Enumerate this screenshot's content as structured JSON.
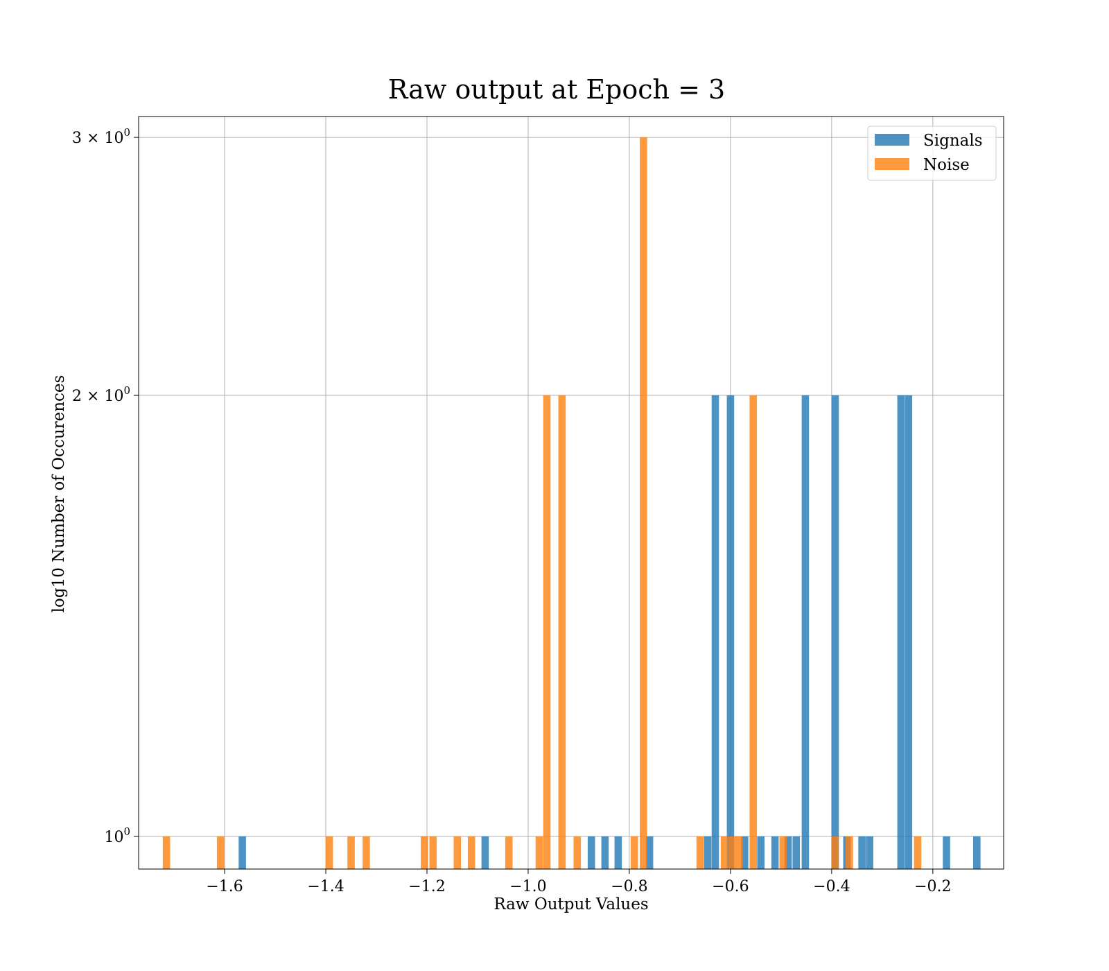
{
  "chart_data": {
    "type": "bar",
    "title": "Raw output at Epoch = 3",
    "xlabel": "Raw Output Values",
    "ylabel": "log10 Number of Occurences",
    "xlim": [
      -1.77,
      -0.06
    ],
    "ylim": [
      0.95,
      3.1
    ],
    "yscale": "log",
    "grid": true,
    "legend_position": "top-right",
    "bin_width": 0.0145,
    "x_ticks": [
      {
        "value": -1.6,
        "label": "−1.6"
      },
      {
        "value": -1.4,
        "label": "−1.4"
      },
      {
        "value": -1.2,
        "label": "−1.2"
      },
      {
        "value": -1.0,
        "label": "−1.0"
      },
      {
        "value": -0.8,
        "label": "−0.8"
      },
      {
        "value": -0.6,
        "label": "−0.6"
      },
      {
        "value": -0.4,
        "label": "−0.4"
      },
      {
        "value": -0.2,
        "label": "−0.2"
      }
    ],
    "y_ticks": [
      {
        "value": 1,
        "base": "10",
        "exp": "0"
      },
      {
        "value": 2,
        "base": "2 × 10",
        "exp": "0"
      },
      {
        "value": 3,
        "base": "3 × 10",
        "exp": "0"
      }
    ],
    "series": [
      {
        "name": "Signals",
        "color": "#1f77b4",
        "bars": [
          {
            "x": -1.565,
            "count": 1
          },
          {
            "x": -1.085,
            "count": 1
          },
          {
            "x": -0.875,
            "count": 1
          },
          {
            "x": -0.848,
            "count": 1
          },
          {
            "x": -0.822,
            "count": 1
          },
          {
            "x": -0.76,
            "count": 1
          },
          {
            "x": -0.645,
            "count": 1
          },
          {
            "x": -0.63,
            "count": 2
          },
          {
            "x": -0.6,
            "count": 2
          },
          {
            "x": -0.572,
            "count": 1
          },
          {
            "x": -0.54,
            "count": 1
          },
          {
            "x": -0.512,
            "count": 1
          },
          {
            "x": -0.486,
            "count": 1
          },
          {
            "x": -0.47,
            "count": 1
          },
          {
            "x": -0.452,
            "count": 2
          },
          {
            "x": -0.393,
            "count": 2
          },
          {
            "x": -0.37,
            "count": 1
          },
          {
            "x": -0.34,
            "count": 1
          },
          {
            "x": -0.325,
            "count": 1
          },
          {
            "x": -0.263,
            "count": 2
          },
          {
            "x": -0.248,
            "count": 2
          },
          {
            "x": -0.173,
            "count": 1
          },
          {
            "x": -0.113,
            "count": 1
          }
        ]
      },
      {
        "name": "Noise",
        "color": "#ff7f0e",
        "bars": [
          {
            "x": -1.715,
            "count": 1
          },
          {
            "x": -1.608,
            "count": 1
          },
          {
            "x": -1.393,
            "count": 1
          },
          {
            "x": -1.35,
            "count": 1
          },
          {
            "x": -1.32,
            "count": 1
          },
          {
            "x": -1.205,
            "count": 1
          },
          {
            "x": -1.188,
            "count": 1
          },
          {
            "x": -1.14,
            "count": 1
          },
          {
            "x": -1.112,
            "count": 1
          },
          {
            "x": -1.038,
            "count": 1
          },
          {
            "x": -0.978,
            "count": 1
          },
          {
            "x": -0.963,
            "count": 2
          },
          {
            "x": -0.933,
            "count": 2
          },
          {
            "x": -0.903,
            "count": 1
          },
          {
            "x": -0.79,
            "count": 1
          },
          {
            "x": -0.772,
            "count": 3
          },
          {
            "x": -0.66,
            "count": 1
          },
          {
            "x": -0.612,
            "count": 1
          },
          {
            "x": -0.597,
            "count": 1
          },
          {
            "x": -0.583,
            "count": 1
          },
          {
            "x": -0.555,
            "count": 2
          },
          {
            "x": -0.496,
            "count": 1
          },
          {
            "x": -0.393,
            "count": 1
          },
          {
            "x": -0.365,
            "count": 1
          },
          {
            "x": -0.23,
            "count": 1
          }
        ]
      }
    ]
  }
}
